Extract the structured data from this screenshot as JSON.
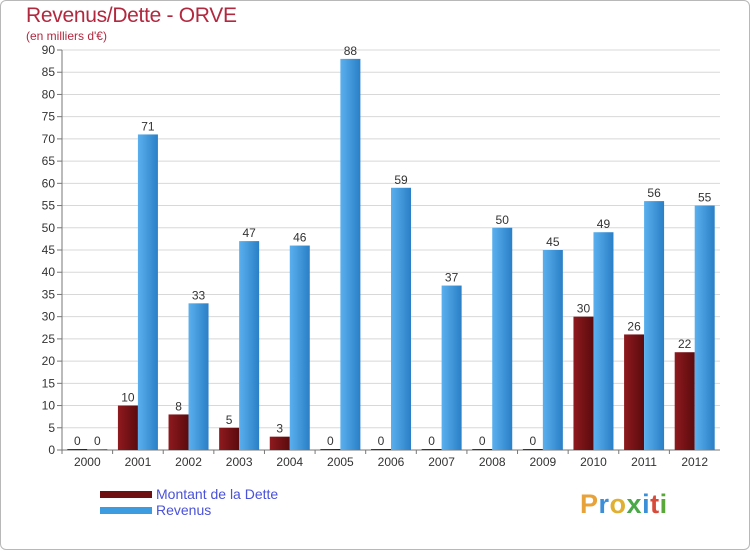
{
  "chart_data": {
    "type": "bar",
    "title": "Revenus/Dette - ORVE",
    "subtitle": "(en milliers d'€)",
    "categories": [
      "2000",
      "2001",
      "2002",
      "2003",
      "2004",
      "2005",
      "2006",
      "2007",
      "2008",
      "2009",
      "2010",
      "2011",
      "2012"
    ],
    "series": [
      {
        "name": "Montant de la Dette",
        "color": "#7a1216",
        "values": [
          0,
          10,
          8,
          5,
          3,
          0,
          0,
          0,
          0,
          0,
          30,
          26,
          22
        ]
      },
      {
        "name": "Revenus",
        "color": "#3d9be0",
        "values": [
          0,
          71,
          33,
          47,
          46,
          88,
          59,
          37,
          50,
          45,
          49,
          56,
          55
        ]
      }
    ],
    "ylim": [
      0,
      90
    ],
    "yticks": [
      0,
      5,
      10,
      15,
      20,
      25,
      30,
      35,
      40,
      45,
      50,
      55,
      60,
      65,
      70,
      75,
      80,
      85,
      90
    ],
    "grid": true,
    "legend": "bottom-left"
  },
  "legend": {
    "debt_label": "Montant de la Dette",
    "revenue_label": "Revenus",
    "debt_color": "#6e0f12",
    "revenue_color": "#3d9be0"
  },
  "logo": {
    "letters": [
      "P",
      "r",
      "o",
      "x",
      "i",
      "t",
      "i"
    ],
    "colors": [
      "#e8a23a",
      "#3a8fd8",
      "#e0b030",
      "#4aa848",
      "#3a8fd8",
      "#d84a3a",
      "#5aa83a"
    ]
  }
}
